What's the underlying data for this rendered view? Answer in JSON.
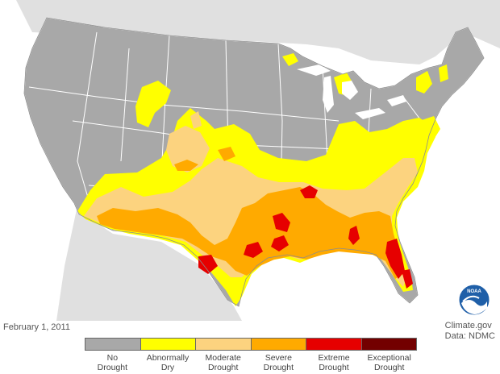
{
  "map": {
    "date": "February 1, 2011",
    "credit_line1": "Climate.gov",
    "credit_line2": "Data: NDMC",
    "logo_text": "NOAA"
  },
  "colors": {
    "background_land": "#d9d9d9",
    "us_land": "#a8a8a8",
    "state_border": "#ffffff",
    "abnormally_dry": "#ffff00",
    "moderate": "#fcd37f",
    "severe": "#ffaa00",
    "extreme": "#e60000",
    "exceptional": "#730000",
    "lakes": "#ffffff"
  },
  "legend": [
    {
      "line1": "No",
      "line2": "Drought",
      "color": "#a8a8a8"
    },
    {
      "line1": "Abnormally",
      "line2": "Dry",
      "color": "#ffff00"
    },
    {
      "line1": "Moderate",
      "line2": "Drought",
      "color": "#fcd37f"
    },
    {
      "line1": "Severe",
      "line2": "Drought",
      "color": "#ffaa00"
    },
    {
      "line1": "Extreme",
      "line2": "Drought",
      "color": "#e60000"
    },
    {
      "line1": "Exceptional",
      "line2": "Drought",
      "color": "#730000"
    }
  ]
}
